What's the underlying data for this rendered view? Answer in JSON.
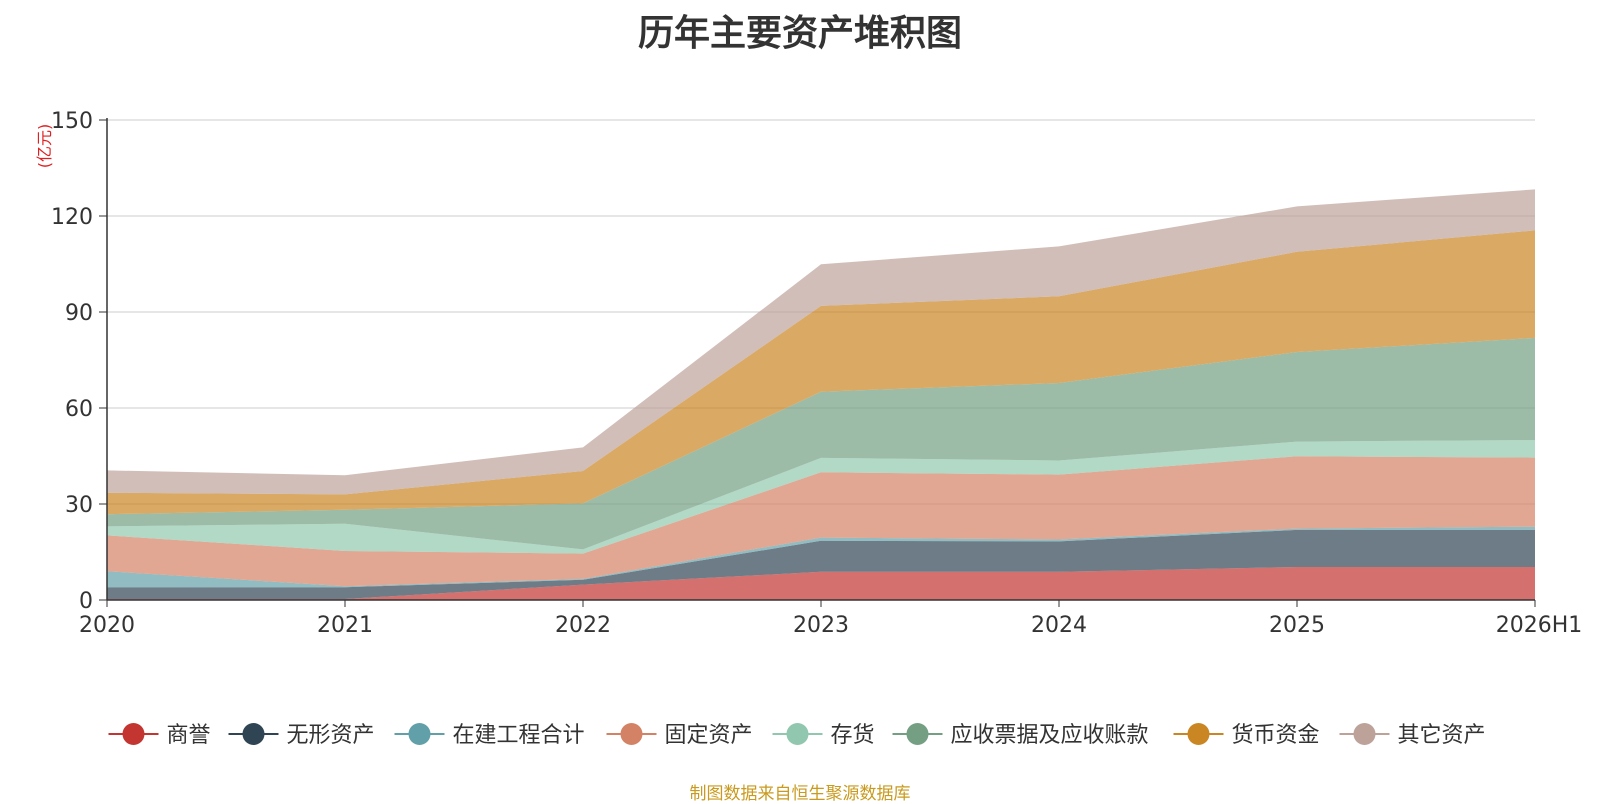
{
  "chart_data": {
    "type": "area",
    "stacked": true,
    "title": "历年主要资产堆积图",
    "unit_label": "(亿元)",
    "source_note": "制图数据来自恒生聚源数据库",
    "x": [
      "2020",
      "2021",
      "2022",
      "2023",
      "2024",
      "2025",
      "2026H1"
    ],
    "y_ticks": [
      0,
      30,
      60,
      90,
      120,
      150
    ],
    "ylim": [
      0,
      150
    ],
    "grid": true,
    "legend_position": "bottom",
    "series": [
      {
        "name": "商誉",
        "color": "#c23531",
        "values": [
          0.3,
          0.3,
          4.8,
          8.8,
          8.8,
          10.3,
          10.3
        ]
      },
      {
        "name": "无形资产",
        "color": "#2f4554",
        "values": [
          3.7,
          3.7,
          1.5,
          9.7,
          9.5,
          11.6,
          11.6
        ]
      },
      {
        "name": "在建工程合计",
        "color": "#61a0a8",
        "values": [
          5.0,
          0.3,
          0.3,
          1.0,
          0.6,
          0.4,
          1.0
        ]
      },
      {
        "name": "固定资产",
        "color": "#d48265",
        "values": [
          11.2,
          11.0,
          7.9,
          20.4,
          20.3,
          22.6,
          21.6
        ]
      },
      {
        "name": "存货",
        "color": "#91c7ae",
        "values": [
          2.8,
          8.5,
          1.3,
          4.5,
          4.4,
          4.6,
          5.5
        ]
      },
      {
        "name": "应收票据及应收账款",
        "color": "#749f83",
        "values": [
          3.8,
          4.4,
          14.4,
          20.7,
          24.2,
          28.0,
          31.9
        ]
      },
      {
        "name": "货币资金",
        "color": "#ca8622",
        "values": [
          6.7,
          4.8,
          10.1,
          26.8,
          27.1,
          31.3,
          33.6
        ]
      },
      {
        "name": "其它资产",
        "color": "#bda29a",
        "values": [
          7.0,
          6.0,
          7.4,
          13.0,
          15.6,
          14.2,
          12.8
        ]
      }
    ]
  }
}
